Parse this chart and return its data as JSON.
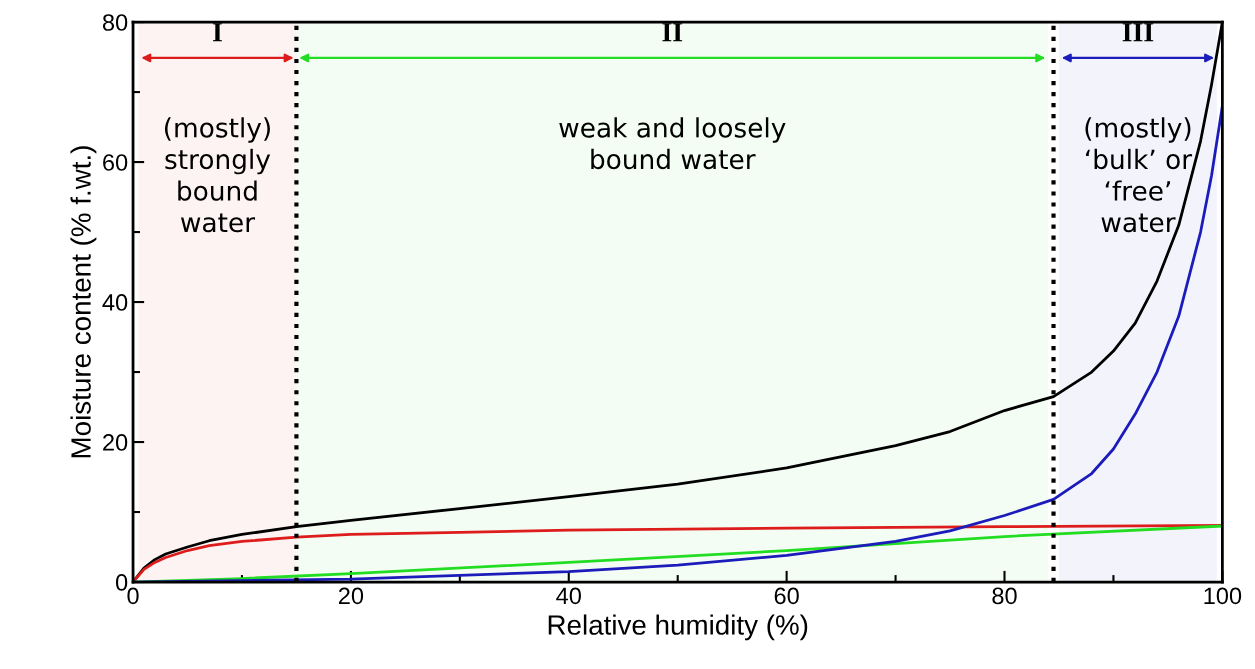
{
  "chart_data": {
    "type": "line",
    "xlabel": "Relative humidity (%)",
    "ylabel": "Moisture content (% f.wt.)",
    "xlim": [
      0,
      100
    ],
    "ylim": [
      0,
      80
    ],
    "xticks": [
      0,
      20,
      40,
      60,
      80,
      100
    ],
    "yticks": [
      0,
      20,
      40,
      60,
      80
    ],
    "grid": false,
    "legend": false,
    "marker": "none",
    "line_style": "solid",
    "series": [
      {
        "color": "#000000",
        "x": [
          0,
          1,
          2,
          3,
          5,
          7,
          10,
          15,
          20,
          30,
          40,
          50,
          60,
          70,
          75,
          80,
          84.5,
          88,
          90,
          92,
          94,
          96,
          98,
          99,
          100
        ],
        "values": [
          0,
          2,
          3.2,
          4,
          5,
          5.9,
          6.8,
          7.9,
          8.8,
          10.5,
          12.2,
          14,
          16.3,
          19.5,
          21.5,
          24.5,
          26.5,
          30,
          33,
          37,
          43,
          51,
          63,
          71,
          80
        ]
      },
      {
        "color": "#dd1c1c",
        "x": [
          0,
          1,
          2,
          3,
          5,
          7,
          10,
          15,
          20,
          30,
          40,
          60,
          80,
          100
        ],
        "values": [
          0,
          1.8,
          2.8,
          3.5,
          4.5,
          5.2,
          5.8,
          6.4,
          6.8,
          7.1,
          7.4,
          7.7,
          7.9,
          8.1
        ]
      },
      {
        "color": "#22dd22",
        "x": [
          0,
          10,
          20,
          40,
          60,
          80,
          100
        ],
        "values": [
          0,
          0.5,
          1.2,
          2.8,
          4.5,
          6.5,
          8
        ]
      },
      {
        "color": "#1c1cbb",
        "x": [
          0,
          20,
          40,
          50,
          60,
          70,
          75,
          80,
          84.5,
          88,
          90,
          92,
          94,
          96,
          98,
          99,
          100
        ],
        "values": [
          0,
          0.4,
          1.5,
          2.4,
          3.8,
          5.8,
          7.3,
          9.5,
          11.8,
          15.5,
          19,
          24,
          30,
          38,
          50,
          58,
          68
        ]
      }
    ],
    "ref_lines": [
      {
        "axis": "x",
        "value": 15,
        "color": "#000000",
        "line_style": "dotted"
      },
      {
        "axis": "x",
        "value": 84.5,
        "color": "#000000",
        "line_style": "dotted"
      }
    ],
    "bands": [
      {
        "axis": "x",
        "from": 0.5,
        "to": 15,
        "label": "I",
        "color": "#dd1c1c"
      },
      {
        "axis": "x",
        "from": 15,
        "to": 84,
        "label": "II",
        "color": "#22dd22"
      },
      {
        "axis": "x",
        "from": 85,
        "to": 99.5,
        "label": "III",
        "color": "#1c1cbb"
      }
    ],
    "annotations": [
      "(mostly)\nstrongly\nbound\nwater",
      "weak and loosely\nbound water",
      "(mostly)\n‘bulk’ or\n‘free’\nwater"
    ]
  }
}
